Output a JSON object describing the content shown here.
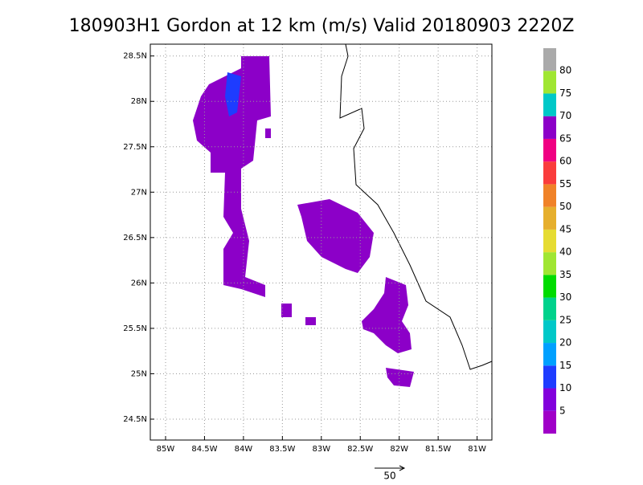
{
  "title": "180903H1 Gordon at 12 km (m/s) Valid 20180903 2220Z",
  "map": {
    "xlim": [
      -85.196,
      -80.81
    ],
    "ylim": [
      24.27,
      28.63
    ],
    "xticks": [
      {
        "value": -85,
        "label": "85W"
      },
      {
        "value": -84.5,
        "label": "84.5W"
      },
      {
        "value": -84,
        "label": "84W"
      },
      {
        "value": -83.5,
        "label": "83.5W"
      },
      {
        "value": -83,
        "label": "83W"
      },
      {
        "value": -82.5,
        "label": "82.5W"
      },
      {
        "value": -82,
        "label": "82W"
      },
      {
        "value": -81.5,
        "label": "81.5W"
      },
      {
        "value": -81,
        "label": "81W"
      }
    ],
    "yticks": [
      {
        "value": 24.5,
        "label": "24.5N"
      },
      {
        "value": 25,
        "label": "25N"
      },
      {
        "value": 25.5,
        "label": "25.5N"
      },
      {
        "value": 26,
        "label": "26N"
      },
      {
        "value": 26.5,
        "label": "26.5N"
      },
      {
        "value": 27,
        "label": "27N"
      },
      {
        "value": 27.5,
        "label": "27.5N"
      },
      {
        "value": 28,
        "label": "28N"
      },
      {
        "value": 28.5,
        "label": "28.5N"
      }
    ],
    "grid": true
  },
  "colorbar": {
    "lim": [
      0,
      85
    ],
    "bounds": [
      0,
      5,
      10,
      15,
      20,
      25,
      30,
      35,
      40,
      45,
      50,
      55,
      60,
      65,
      70,
      75,
      80,
      85
    ],
    "colors": [
      "#a000c8",
      "#8200dc",
      "#1e3cff",
      "#00a0ff",
      "#00c8c8",
      "#00d28c",
      "#00dc00",
      "#a0e632",
      "#e6dc32",
      "#e6af2d",
      "#f08228",
      "#fa3c3c",
      "#f00082",
      "#8c00c8",
      "#00c8c8",
      "#a0e632",
      "#aaaaaa"
    ],
    "ticks": [
      5,
      10,
      15,
      20,
      25,
      30,
      35,
      40,
      45,
      50,
      55,
      60,
      65,
      70,
      75,
      80
    ]
  },
  "reference_vector": {
    "label": "50"
  }
}
